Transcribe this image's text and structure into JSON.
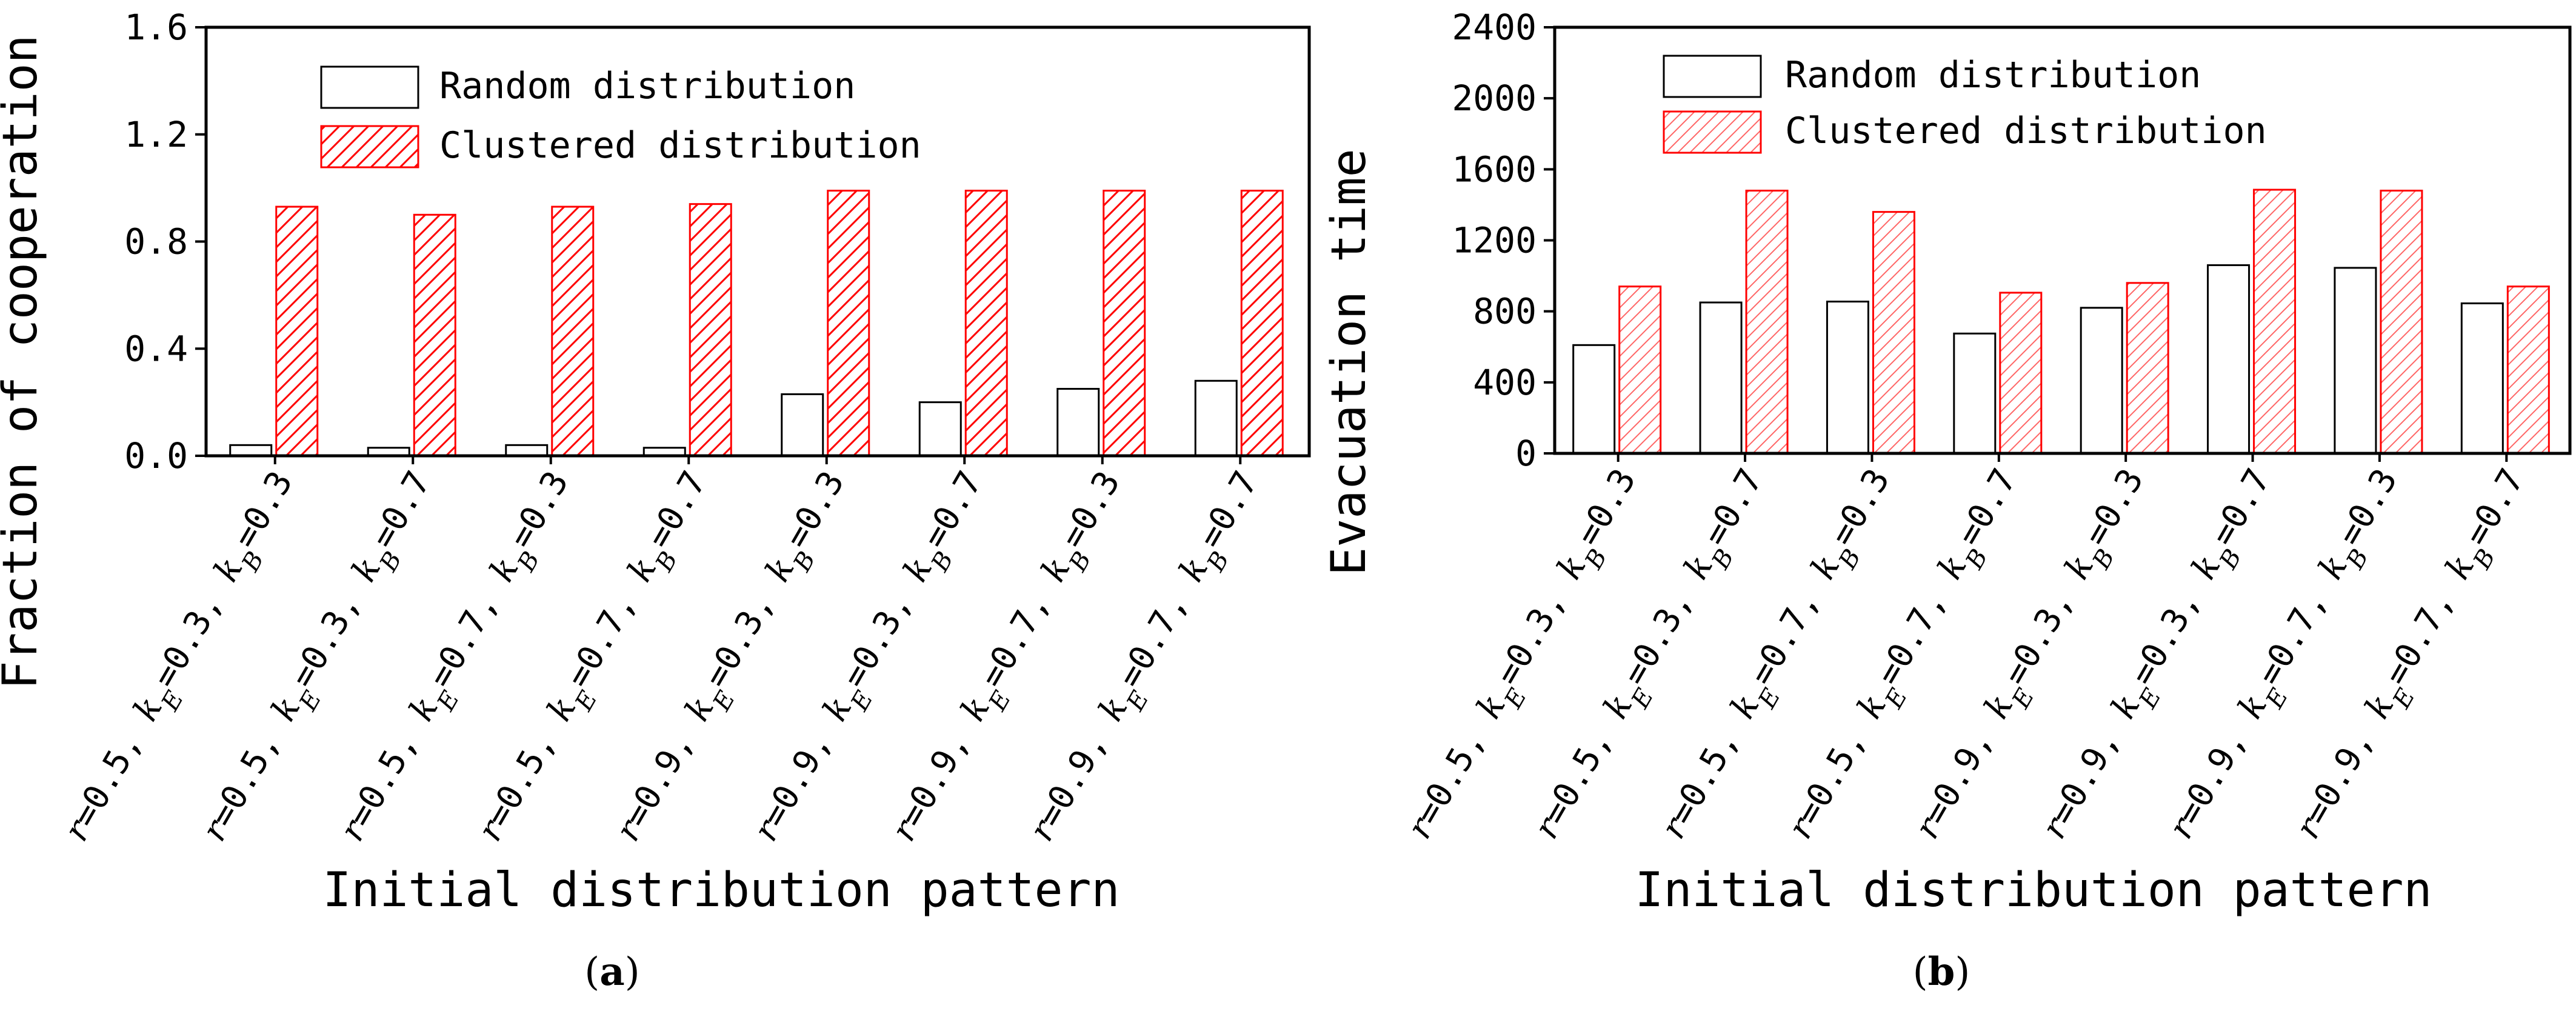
{
  "chart_data": [
    {
      "panel": "a",
      "type": "bar",
      "ylabel": "Fraction of cooperation",
      "xlabel": "Initial distribution pattern",
      "ylim": [
        0,
        1.6
      ],
      "yticks": [
        "0.0",
        "0.4",
        "0.8",
        "1.2",
        "1.6"
      ],
      "ytick_values": [
        0,
        0.4,
        0.8,
        1.2,
        1.6
      ],
      "categories": [
        {
          "r": "0.5",
          "kE": "0.3",
          "kB": "0.3"
        },
        {
          "r": "0.5",
          "kE": "0.3",
          "kB": "0.7"
        },
        {
          "r": "0.5",
          "kE": "0.7",
          "kB": "0.3"
        },
        {
          "r": "0.5",
          "kE": "0.7",
          "kB": "0.7"
        },
        {
          "r": "0.9",
          "kE": "0.3",
          "kB": "0.3"
        },
        {
          "r": "0.9",
          "kE": "0.3",
          "kB": "0.7"
        },
        {
          "r": "0.9",
          "kE": "0.7",
          "kB": "0.3"
        },
        {
          "r": "0.9",
          "kE": "0.7",
          "kB": "0.7"
        }
      ],
      "series": [
        {
          "name": "Random distribution",
          "values": [
            0.04,
            0.03,
            0.04,
            0.03,
            0.23,
            0.2,
            0.25,
            0.28
          ]
        },
        {
          "name": "Clustered distribution",
          "values": [
            0.93,
            0.9,
            0.93,
            0.94,
            0.99,
            0.99,
            0.99,
            0.99
          ]
        }
      ],
      "legend": "top-left",
      "panel_label": "a"
    },
    {
      "panel": "b",
      "type": "bar",
      "ylabel": "Evacuation time",
      "xlabel": "Initial distribution pattern",
      "ylim": [
        0,
        2400
      ],
      "yticks": [
        "0",
        "400",
        "800",
        "1200",
        "1600",
        "2000",
        "2400"
      ],
      "ytick_values": [
        0,
        400,
        800,
        1200,
        1600,
        2000,
        2400
      ],
      "categories": [
        {
          "r": "0.5",
          "kE": "0.3",
          "kB": "0.3"
        },
        {
          "r": "0.5",
          "kE": "0.3",
          "kB": "0.7"
        },
        {
          "r": "0.5",
          "kE": "0.7",
          "kB": "0.3"
        },
        {
          "r": "0.5",
          "kE": "0.7",
          "kB": "0.7"
        },
        {
          "r": "0.9",
          "kE": "0.3",
          "kB": "0.3"
        },
        {
          "r": "0.9",
          "kE": "0.3",
          "kB": "0.7"
        },
        {
          "r": "0.9",
          "kE": "0.7",
          "kB": "0.3"
        },
        {
          "r": "0.9",
          "kE": "0.7",
          "kB": "0.7"
        }
      ],
      "series": [
        {
          "name": "Random distribution",
          "values": [
            610,
            850,
            855,
            675,
            820,
            1060,
            1045,
            845
          ]
        },
        {
          "name": "Clustered distribution",
          "values": [
            940,
            1480,
            1360,
            905,
            960,
            1485,
            1480,
            940
          ]
        }
      ],
      "legend": "top-left",
      "panel_label": "b"
    }
  ],
  "colors": {
    "random_edge": "#000000",
    "clustered_edge": "#ff0000",
    "axis": "#000000"
  }
}
